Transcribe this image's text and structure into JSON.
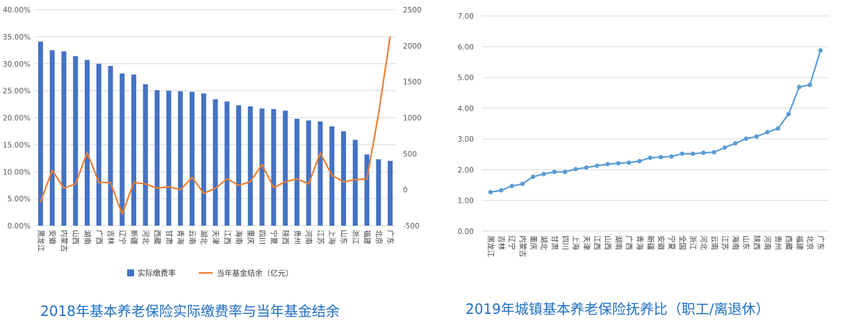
{
  "chart_data": [
    {
      "type": "bar",
      "title": "2018年基本养老保险实际缴费率与当年基金结余",
      "categories": [
        "黑龙江",
        "安徽",
        "内蒙古",
        "山西",
        "湖南",
        "广西",
        "吉林",
        "辽宁",
        "新疆",
        "河北",
        "西藏",
        "甘肃",
        "青海",
        "云南",
        "湖北",
        "天津",
        "江西",
        "海南",
        "重庆",
        "四川",
        "宁夏",
        "陕西",
        "贵州",
        "河南",
        "江苏",
        "上海",
        "山东",
        "浙江",
        "福建",
        "北京",
        "广东"
      ],
      "series": [
        {
          "name": "实际缴费率",
          "type": "bar",
          "axis": "left",
          "color": "#4472c4",
          "values": [
            0.341,
            0.325,
            0.323,
            0.314,
            0.307,
            0.3,
            0.296,
            0.282,
            0.28,
            0.262,
            0.251,
            0.25,
            0.249,
            0.248,
            0.245,
            0.234,
            0.23,
            0.223,
            0.221,
            0.217,
            0.216,
            0.213,
            0.198,
            0.195,
            0.193,
            0.184,
            0.175,
            0.159,
            0.132,
            0.123,
            0.12
          ]
        },
        {
          "name": "当年基金结余（亿元）",
          "type": "line",
          "axis": "right",
          "color": "#ed7d31",
          "values": [
            -170,
            270,
            20,
            80,
            520,
            100,
            100,
            -340,
            100,
            80,
            20,
            40,
            0,
            170,
            -50,
            20,
            150,
            60,
            110,
            350,
            30,
            110,
            150,
            80,
            510,
            200,
            110,
            140,
            150,
            1050,
            2130
          ]
        }
      ],
      "y_left": {
        "min": 0,
        "max": 0.4,
        "step": 0.05,
        "ticks": [
          "0.00%",
          "5.00%",
          "10.00%",
          "15.00%",
          "20.00%",
          "25.00%",
          "30.00%",
          "35.00%",
          "40.00%"
        ]
      },
      "y_right": {
        "min": -500,
        "max": 2500,
        "step": 500,
        "ticks": [
          "-500",
          "0",
          "500",
          "1000",
          "1500",
          "2000",
          "2500"
        ]
      },
      "legend": [
        "实际缴费率",
        "当年基金结余（亿元）"
      ],
      "grid": true
    },
    {
      "type": "line",
      "title": "2019年城镇基本养老保险抚养比（职工/离退休）",
      "categories": [
        "黑龙江",
        "吉林",
        "辽宁",
        "内蒙古",
        "重庆",
        "湖北",
        "甘肃",
        "四川",
        "上海",
        "天津",
        "江西",
        "山西",
        "湖南",
        "广西",
        "青海",
        "新疆",
        "安徽",
        "宁夏",
        "全国",
        "浙江",
        "河北",
        "云南",
        "江苏",
        "海南",
        "山东",
        "陕西",
        "河南",
        "贵州",
        "西藏",
        "福建",
        "北京",
        "广东"
      ],
      "series": [
        {
          "name": "",
          "color": "#5b9bd5",
          "values": [
            1.27,
            1.33,
            1.47,
            1.54,
            1.77,
            1.86,
            1.93,
            1.93,
            2.02,
            2.07,
            2.13,
            2.18,
            2.21,
            2.23,
            2.28,
            2.39,
            2.41,
            2.43,
            2.52,
            2.52,
            2.55,
            2.57,
            2.72,
            2.86,
            3.01,
            3.08,
            3.22,
            3.34,
            3.81,
            4.69,
            4.76,
            5.88
          ]
        }
      ],
      "y": {
        "min": 0,
        "max": 7,
        "step": 1,
        "ticks": [
          "0.00",
          "1.00",
          "2.00",
          "3.00",
          "4.00",
          "5.00",
          "6.00",
          "7.00"
        ]
      },
      "grid": true
    }
  ]
}
